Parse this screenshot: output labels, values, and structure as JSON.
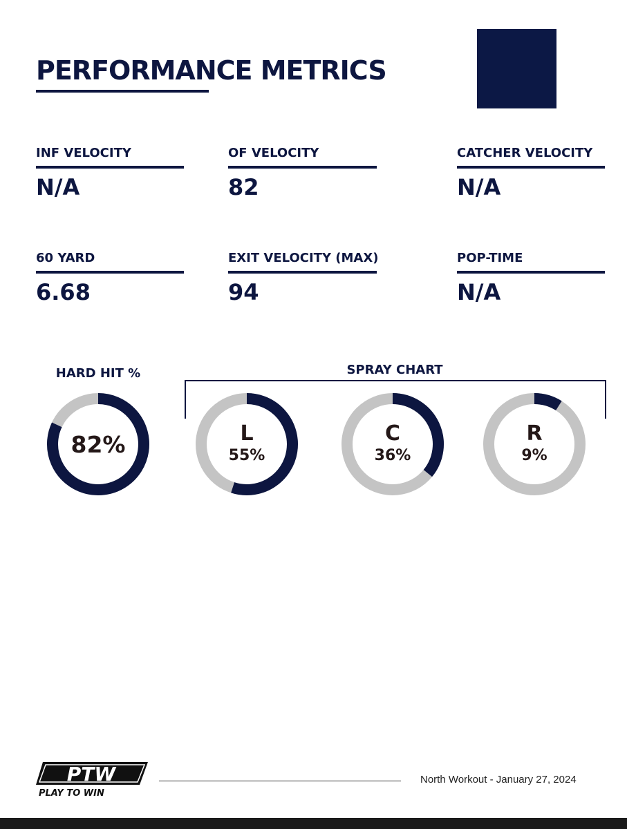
{
  "header": {
    "title": "PERFORMANCE METRICS"
  },
  "metrics": [
    {
      "label": "INF VELOCITY",
      "value": "N/A"
    },
    {
      "label": "OF VELOCITY",
      "value": "82"
    },
    {
      "label": "CATCHER VELOCITY",
      "value": "N/A"
    },
    {
      "label": "60 YARD",
      "value": "6.68"
    },
    {
      "label": "EXIT VELOCITY (MAX)",
      "value": "94"
    },
    {
      "label": "POP-TIME",
      "value": "N/A"
    }
  ],
  "hard_hit": {
    "label": "HARD HIT %",
    "value": "82%",
    "fraction": 0.82
  },
  "spray_chart": {
    "label": "SPRAY CHART",
    "items": [
      {
        "letter": "L",
        "value": "55%",
        "fraction": 0.55
      },
      {
        "letter": "C",
        "value": "36%",
        "fraction": 0.36
      },
      {
        "letter": "R",
        "value": "9%",
        "fraction": 0.09
      }
    ]
  },
  "footer": {
    "logo_text": "PTW",
    "logo_tagline": "PLAY TO WIN",
    "event": "North Workout - January 27, 2024"
  },
  "colors": {
    "navy": "#0d1640",
    "track": "#c4c4c4",
    "number": "#241818"
  }
}
